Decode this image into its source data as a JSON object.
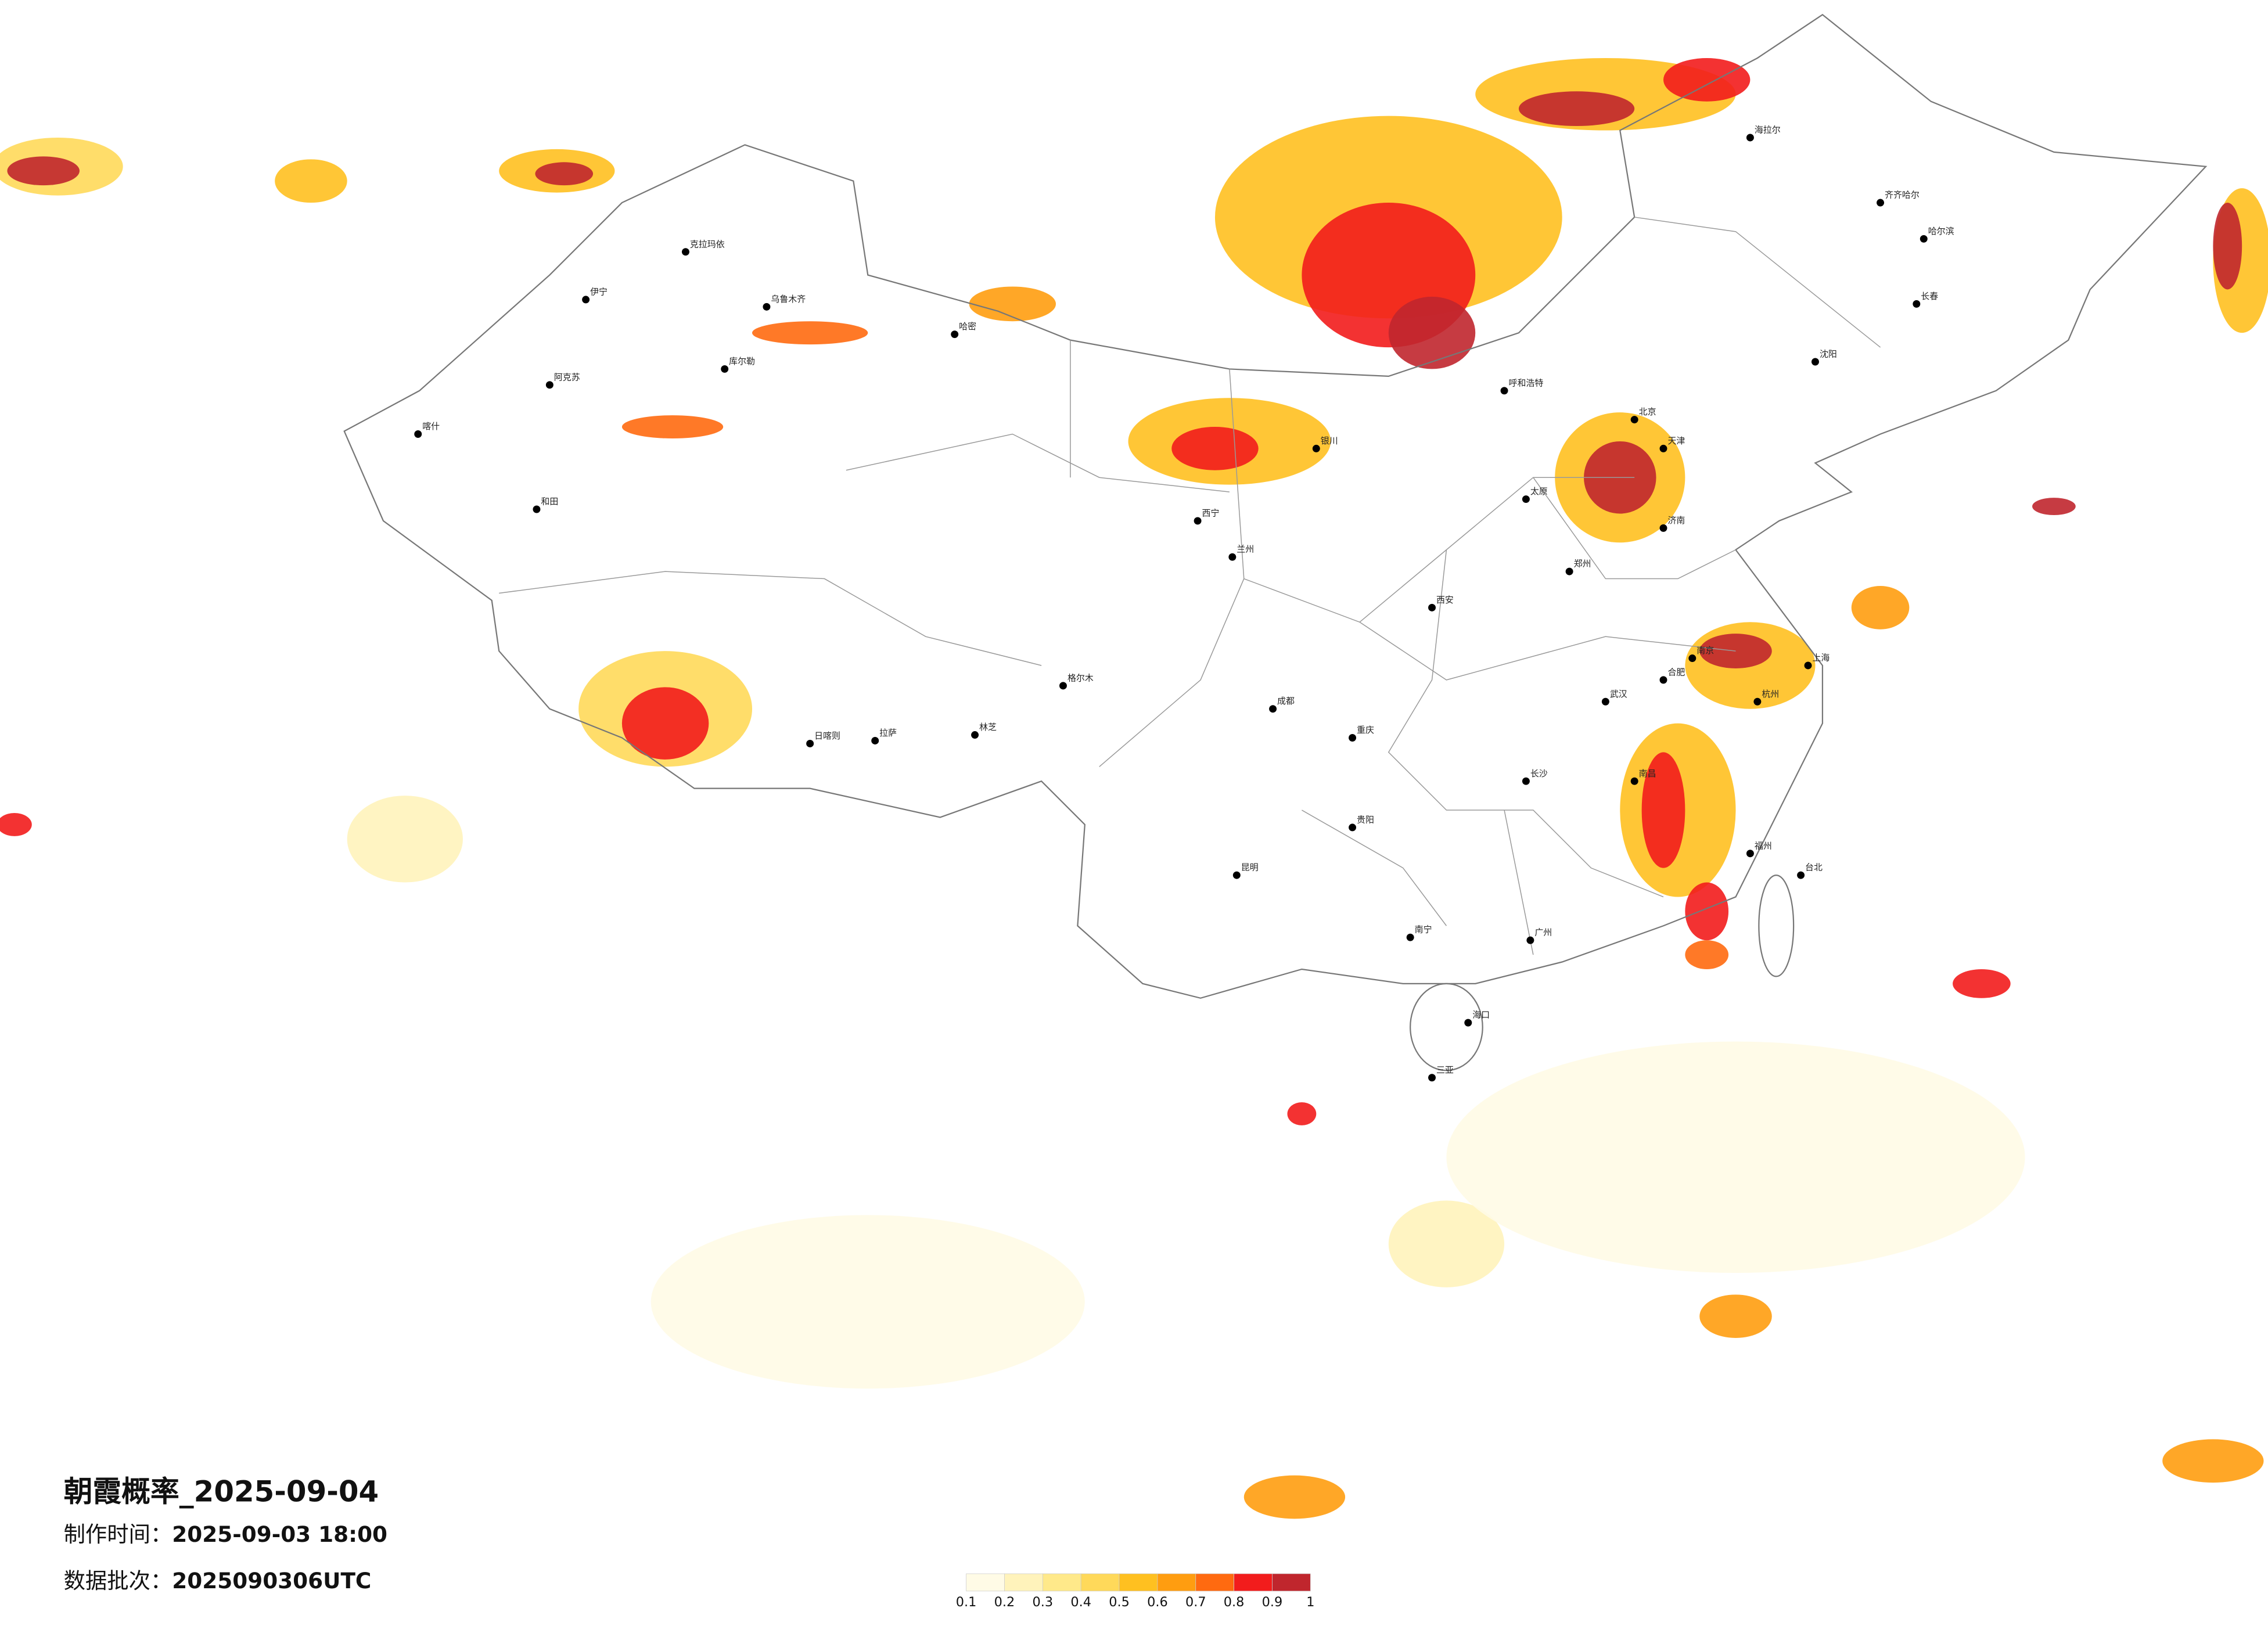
{
  "title": "朝霞概率_2025-09-04",
  "production_time": {
    "label": "制作时间：",
    "value": "2025-09-03 18:00"
  },
  "data_batch": {
    "label": "数据批次：",
    "value": "2025090306UTC"
  },
  "cities": [
    "克拉玛依",
    "伊宁",
    "阿克苏",
    "喀什",
    "和田",
    "库尔勒",
    "乌鲁木齐",
    "哈密",
    "格尔木",
    "日喀则",
    "拉萨",
    "林芝",
    "西宁",
    "兰州",
    "银川",
    "成都",
    "重庆",
    "昆明",
    "贵阳",
    "南宁",
    "广州",
    "海口",
    "三亚",
    "长沙",
    "武汉",
    "南昌",
    "福州",
    "台北",
    "杭州",
    "上海",
    "南京",
    "合肥",
    "郑州",
    "济南",
    "北京",
    "天津",
    "太原",
    "呼和浩特",
    "沈阳",
    "长春",
    "哈尔滨",
    "西安",
    "齐齐哈尔",
    "海拉尔"
  ],
  "colorbar": {
    "colors": [
      "#fffbe6",
      "#fff3bb",
      "#ffe98a",
      "#ffd95a",
      "#ffc020",
      "#ff9d10",
      "#ff6a10",
      "#f21c1c",
      "#c0262d"
    ],
    "ticks": [
      0.1,
      0.2,
      0.3,
      0.4,
      0.5,
      0.6,
      0.7,
      0.8,
      0.9,
      1
    ]
  }
}
